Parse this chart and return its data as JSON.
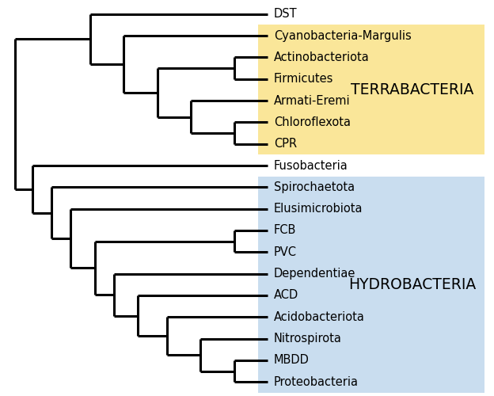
{
  "taxa": [
    "DST",
    "Cyanobacteria-Margulis",
    "Actinobacteriota",
    "Firmicutes",
    "Armati-Eremi",
    "Chloroflexota",
    "CPR",
    "Fusobacteria",
    "Spirochaetota",
    "Elusimicrobiota",
    "FCB",
    "PVC",
    "Dependentiae",
    "ACD",
    "Acidobacteriota",
    "Nitrospirota",
    "MBDD",
    "Proteobacteria"
  ],
  "terrabacteria_color": "#FAE699",
  "hydrobacteria_color": "#C9DDEF",
  "terrabacteria_label": "TERRABACTERIA",
  "hydrobacteria_label": "HYDROBACTERIA",
  "background_color": "#ffffff",
  "line_color": "#000000",
  "line_width": 2.2,
  "font_size": 10.5,
  "label_font_size": 13.5,
  "xlim": [
    0.0,
    10.0
  ],
  "ylim": [
    -0.5,
    17.5
  ],
  "x_leaf": 5.5,
  "bg_x_start": 5.3,
  "bg_x_end": 10.0,
  "terra_y_top_taxa": "Cyanobacteria-Margulis",
  "terra_y_bot_taxa": "CPR",
  "hydro_y_top_taxa": "Spirochaetota",
  "hydro_y_bot_taxa": "Proteobacteria"
}
